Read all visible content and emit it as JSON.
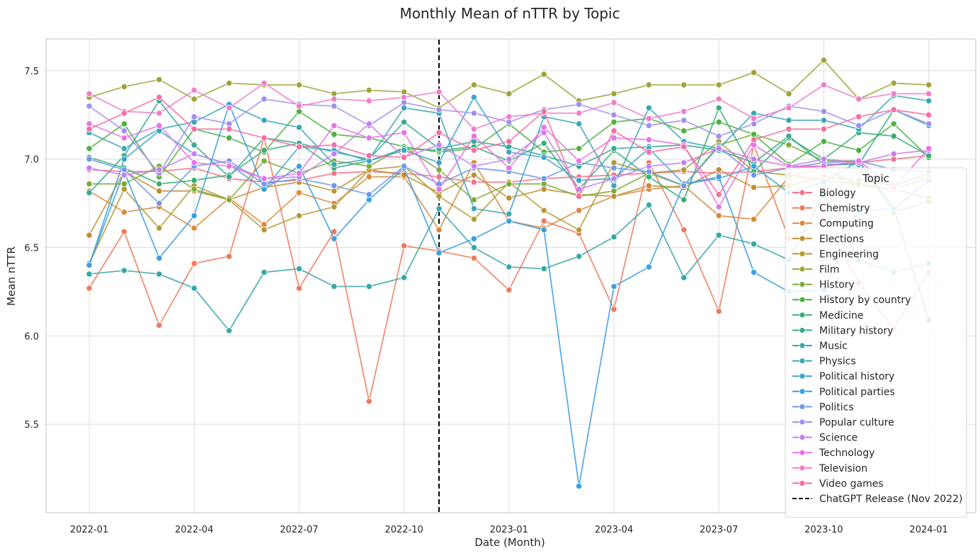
{
  "chart_data": {
    "type": "line",
    "title": "Monthly Mean of nTTR by Topic",
    "xlabel": "Date (Month)",
    "ylabel": "Mean nTTR",
    "x": [
      "2022-01",
      "2022-02",
      "2022-03",
      "2022-04",
      "2022-05",
      "2022-06",
      "2022-07",
      "2022-08",
      "2022-09",
      "2022-10",
      "2022-11",
      "2022-12",
      "2023-01",
      "2023-02",
      "2023-03",
      "2023-04",
      "2023-05",
      "2023-06",
      "2023-07",
      "2023-08",
      "2023-09",
      "2023-10",
      "2023-11",
      "2023-12",
      "2024-01"
    ],
    "xticks": [
      "2022-01",
      "2022-04",
      "2022-07",
      "2022-10",
      "2023-01",
      "2023-04",
      "2023-07",
      "2023-10",
      "2024-01"
    ],
    "ylim": [
      5.0,
      7.68
    ],
    "yticks": [
      5.5,
      6.0,
      6.5,
      7.0,
      7.5
    ],
    "ytick_labels": [
      "5.5",
      "6.0",
      "6.5",
      "7.0",
      "7.5"
    ],
    "grid": true,
    "legend_title": "Topic",
    "legend_position": "right",
    "vline": {
      "x": "2022-11",
      "label": "ChatGPT Release (Nov 2022)",
      "color": "#000000"
    },
    "series": [
      {
        "name": "Biology",
        "color": "#f77189",
        "values": [
          6.94,
          6.93,
          6.93,
          6.95,
          6.89,
          6.87,
          6.88,
          6.92,
          6.93,
          6.92,
          6.9,
          6.87,
          6.87,
          6.89,
          6.9,
          6.91,
          6.92,
          6.93,
          6.92,
          6.93,
          6.95,
          6.96,
          6.98,
          7.0,
          7.02
        ]
      },
      {
        "name": "Chemistry",
        "color": "#ee7a5b",
        "values": [
          6.27,
          6.59,
          6.06,
          6.41,
          6.45,
          7.12,
          6.27,
          6.59,
          5.63,
          6.51,
          6.48,
          6.44,
          6.26,
          6.65,
          6.58,
          6.15,
          6.98,
          6.6,
          6.14,
          7.08,
          6.55,
          6.65,
          6.3,
          6.04,
          6.36
        ]
      },
      {
        "name": "Computing",
        "color": "#d9893c",
        "values": [
          6.82,
          6.7,
          6.73,
          6.61,
          6.78,
          6.63,
          6.81,
          6.75,
          6.9,
          6.9,
          6.6,
          6.98,
          6.65,
          6.61,
          6.71,
          6.79,
          6.83,
          6.85,
          6.68,
          6.66,
          6.9,
          6.95,
          6.85,
          6.83,
          6.9
        ]
      },
      {
        "name": "Elections",
        "color": "#c08f32",
        "values": [
          6.57,
          6.93,
          6.82,
          6.82,
          6.77,
          6.84,
          6.87,
          6.82,
          6.94,
          6.91,
          6.81,
          6.91,
          6.78,
          6.83,
          6.8,
          6.79,
          6.85,
          6.84,
          6.94,
          6.84,
          6.85,
          6.9,
          6.88,
          6.85,
          6.92
        ]
      },
      {
        "name": "Engineering",
        "color": "#b39a32",
        "values": [
          6.41,
          6.83,
          6.61,
          6.85,
          6.77,
          6.6,
          6.68,
          6.73,
          6.94,
          6.96,
          6.79,
          6.66,
          6.87,
          6.71,
          6.6,
          6.98,
          6.92,
          6.94,
          7.1,
          6.93,
          6.91,
          6.88,
          6.86,
          6.83,
          6.78
        ]
      },
      {
        "name": "Film",
        "color": "#a0a33a",
        "values": [
          7.35,
          7.41,
          7.45,
          7.34,
          7.43,
          7.42,
          7.42,
          7.37,
          7.39,
          7.38,
          7.29,
          7.42,
          7.37,
          7.48,
          7.33,
          7.37,
          7.42,
          7.42,
          7.42,
          7.49,
          7.37,
          7.56,
          7.34,
          7.43,
          7.42
        ]
      },
      {
        "name": "History",
        "color": "#7dac36",
        "values": [
          6.86,
          6.86,
          6.96,
          6.83,
          6.77,
          6.99,
          6.92,
          6.99,
          6.96,
          7.07,
          6.94,
          6.77,
          6.86,
          6.86,
          6.79,
          6.82,
          6.92,
          6.85,
          7.08,
          7.14,
          7.08,
          6.99,
          6.99,
          6.7,
          6.76
        ]
      },
      {
        "name": "History by country",
        "color": "#4fb13f",
        "values": [
          7.06,
          7.2,
          6.9,
          7.17,
          7.12,
          7.04,
          7.27,
          7.14,
          7.12,
          7.07,
          7.04,
          7.06,
          7.2,
          7.04,
          7.06,
          7.21,
          7.23,
          7.16,
          7.21,
          7.14,
          6.97,
          7.1,
          7.05,
          7.2,
          7.01
        ]
      },
      {
        "name": "Medicine",
        "color": "#37ae76",
        "values": [
          7.01,
          6.95,
          6.86,
          6.88,
          6.91,
          7.05,
          7.09,
          6.95,
          6.99,
          7.06,
          7.05,
          7.07,
          6.99,
          7.09,
          6.83,
          7.05,
          6.9,
          6.77,
          7.29,
          6.93,
          7.12,
          7.0,
          7.15,
          7.13,
          7.02
        ]
      },
      {
        "name": "Military history",
        "color": "#36aa93",
        "values": [
          6.81,
          7.02,
          7.33,
          7.08,
          6.9,
          7.12,
          7.09,
          7.04,
          7.0,
          7.21,
          7.06,
          7.1,
          7.07,
          7.02,
          6.96,
          7.06,
          7.07,
          7.08,
          7.05,
          6.98,
          7.13,
          6.97,
          6.97,
          7.28,
          7.19
        ]
      },
      {
        "name": "Music",
        "color": "#39a7a8",
        "values": [
          6.35,
          6.37,
          6.35,
          6.27,
          6.03,
          6.36,
          6.38,
          6.28,
          6.28,
          6.33,
          6.72,
          6.5,
          6.39,
          6.38,
          6.45,
          6.56,
          6.74,
          6.33,
          6.57,
          6.52,
          6.43,
          6.8,
          6.43,
          6.36,
          6.41
        ]
      },
      {
        "name": "Physics",
        "color": "#3ba6b9",
        "values": [
          7.15,
          7.06,
          7.17,
          7.21,
          7.31,
          7.22,
          7.18,
          6.97,
          7.0,
          7.29,
          7.26,
          6.72,
          6.69,
          7.24,
          7.2,
          6.85,
          7.29,
          7.1,
          7.06,
          7.26,
          7.22,
          7.22,
          7.17,
          7.36,
          7.33
        ]
      },
      {
        "name": "Political history",
        "color": "#3ca4cb",
        "values": [
          6.4,
          7.0,
          7.16,
          7.03,
          6.97,
          6.83,
          7.07,
          7.05,
          6.99,
          7.05,
          6.98,
          7.35,
          7.04,
          7.01,
          6.88,
          6.89,
          7.06,
          6.86,
          6.89,
          6.96,
          6.81,
          6.87,
          6.99,
          6.72,
          6.09
        ]
      },
      {
        "name": "Political parties",
        "color": "#3d9ee0",
        "values": [
          6.4,
          6.93,
          6.44,
          6.68,
          7.31,
          6.83,
          6.96,
          6.55,
          6.77,
          6.95,
          6.47,
          6.55,
          6.65,
          6.6,
          5.15,
          6.28,
          6.39,
          6.86,
          6.9,
          6.36,
          6.25,
          6.26,
          6.71,
          6.72,
          6.88
        ]
      },
      {
        "name": "Politics",
        "color": "#6f9ae8",
        "values": [
          7.0,
          6.94,
          6.75,
          6.96,
          6.99,
          6.86,
          6.89,
          6.85,
          6.8,
          6.96,
          6.86,
          6.95,
          6.93,
          6.89,
          6.98,
          6.95,
          6.93,
          6.85,
          7.07,
          6.91,
          6.95,
          6.98,
          6.99,
          6.94,
          6.93
        ]
      },
      {
        "name": "Popular culture",
        "color": "#a18ff0",
        "values": [
          7.3,
          7.16,
          6.92,
          7.24,
          7.2,
          7.34,
          7.31,
          7.3,
          7.19,
          7.32,
          7.28,
          7.26,
          7.21,
          7.28,
          7.31,
          7.25,
          7.19,
          7.22,
          7.13,
          7.2,
          7.3,
          7.27,
          7.19,
          7.28,
          7.2
        ]
      },
      {
        "name": "Science",
        "color": "#c581ec",
        "values": [
          6.95,
          6.91,
          6.94,
          7.03,
          6.97,
          6.89,
          6.9,
          7.03,
          7.2,
          7.01,
          7.08,
          6.96,
          7.0,
          7.15,
          6.83,
          6.89,
          6.96,
          6.98,
          7.06,
          7.0,
          6.96,
          7.0,
          6.98,
          7.03,
          7.05
        ]
      },
      {
        "name": "Technology",
        "color": "#e674e6",
        "values": [
          7.2,
          7.12,
          7.19,
          6.98,
          6.96,
          6.89,
          6.92,
          7.19,
          7.12,
          7.15,
          6.83,
          7.13,
          6.95,
          7.18,
          6.99,
          7.12,
          7.11,
          7.08,
          6.73,
          7.08,
          6.96,
          6.96,
          6.99,
          6.84,
          7.06
        ]
      },
      {
        "name": "Television",
        "color": "#f07fc9",
        "values": [
          7.37,
          7.27,
          7.26,
          7.39,
          7.29,
          7.43,
          7.3,
          7.34,
          7.33,
          7.35,
          7.38,
          7.17,
          7.24,
          7.26,
          7.26,
          7.32,
          7.23,
          7.27,
          7.34,
          7.23,
          7.29,
          7.42,
          7.34,
          7.37,
          7.37
        ]
      },
      {
        "name": "Video games",
        "color": "#f56ea4",
        "values": [
          7.17,
          7.26,
          7.35,
          7.17,
          7.17,
          7.12,
          7.07,
          7.08,
          7.02,
          7.01,
          7.15,
          7.05,
          7.1,
          7.27,
          6.79,
          7.16,
          7.04,
          7.07,
          6.8,
          7.11,
          7.17,
          7.17,
          7.24,
          7.28,
          7.25
        ]
      }
    ]
  }
}
